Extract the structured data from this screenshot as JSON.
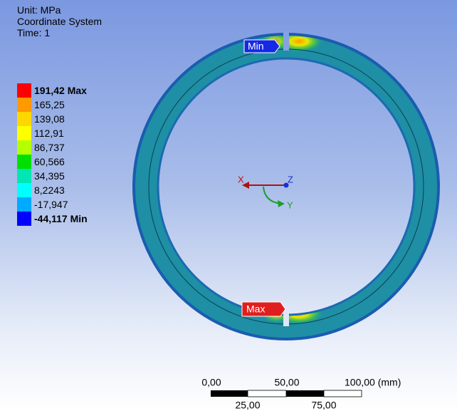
{
  "header": {
    "lines": [
      "Unit: MPa",
      "Coordinate System",
      "Time: 1"
    ]
  },
  "legend": {
    "items": [
      {
        "label": "191,42 Max",
        "color": "#ff0000",
        "bold": true
      },
      {
        "label": "165,25",
        "color": "#ff9900",
        "bold": false
      },
      {
        "label": "139,08",
        "color": "#ffd700",
        "bold": false
      },
      {
        "label": "112,91",
        "color": "#ffff00",
        "bold": false
      },
      {
        "label": "86,737",
        "color": "#b4ff00",
        "bold": false
      },
      {
        "label": "60,566",
        "color": "#00e000",
        "bold": false
      },
      {
        "label": "34,395",
        "color": "#00e6b4",
        "bold": false
      },
      {
        "label": "8,2243",
        "color": "#00ffff",
        "bold": false
      },
      {
        "label": "-17,947",
        "color": "#00aaff",
        "bold": false
      },
      {
        "label": "-44,117 Min",
        "color": "#0000ff",
        "bold": true
      }
    ]
  },
  "probes": {
    "min": "Min",
    "max": "Max"
  },
  "triad": {
    "x": "X",
    "y": "Y",
    "z": "Z"
  },
  "scale_bar": {
    "top_labels": [
      "0,00",
      "50,00",
      "100,00 (mm)"
    ],
    "bottom_labels": [
      "25,00",
      "75,00"
    ]
  }
}
